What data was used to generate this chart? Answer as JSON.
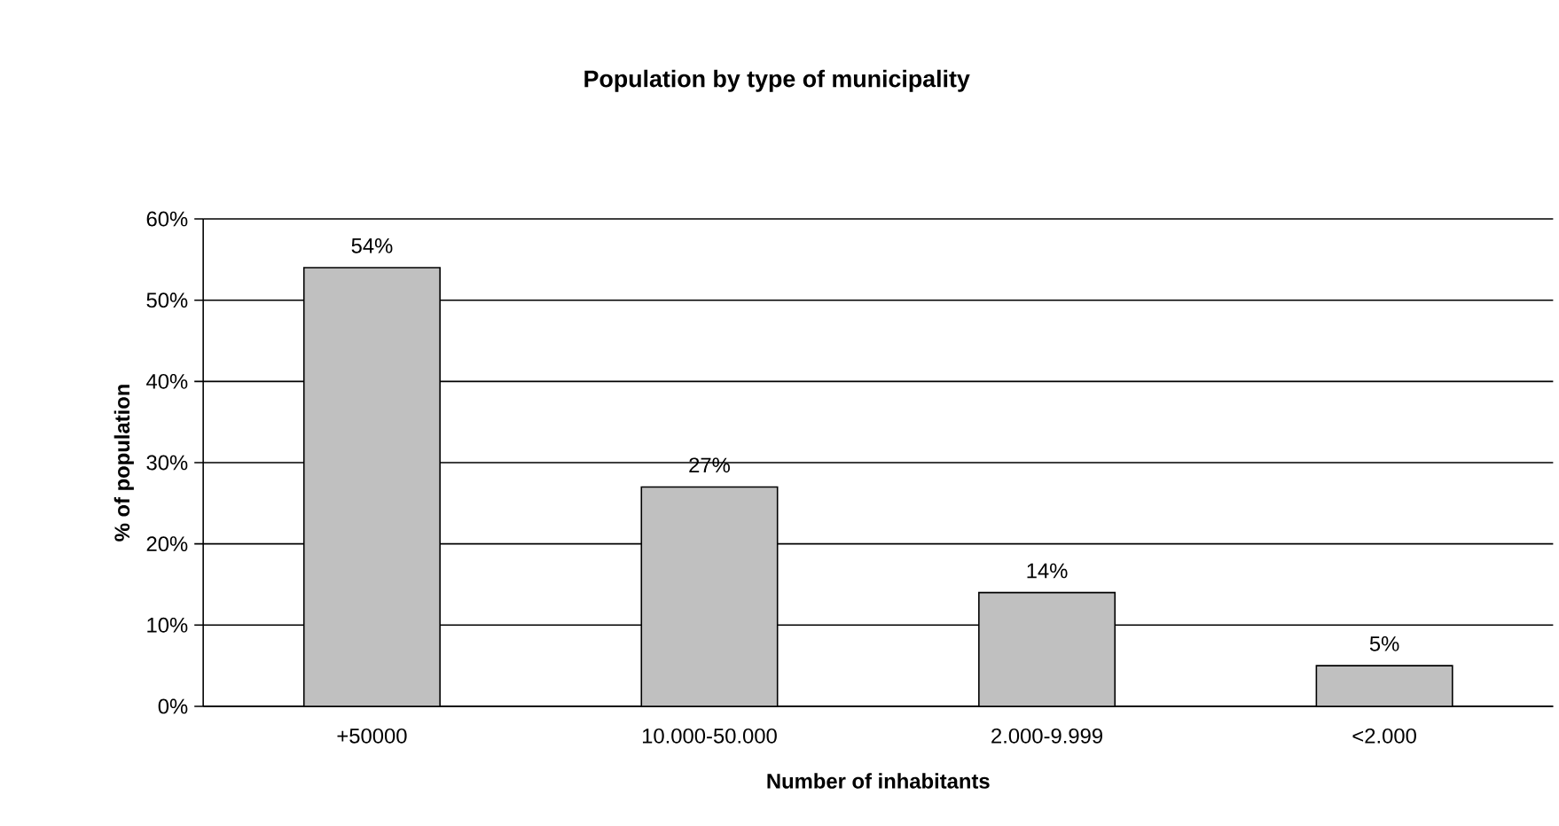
{
  "chart_data": {
    "type": "bar",
    "title": "Population by type of municipality",
    "xlabel": "Number of inhabitants",
    "ylabel": "% of population",
    "categories": [
      "+50000",
      "10.000-50.000",
      "2.000-9.999",
      "<2.000"
    ],
    "values": [
      54,
      27,
      14,
      5
    ],
    "value_labels": [
      "54%",
      "27%",
      "14%",
      "5%"
    ],
    "color": "#c0c0c0",
    "ylim": [
      0,
      60
    ],
    "yticks": [
      {
        "value": 0,
        "label": "0%"
      },
      {
        "value": 10,
        "label": "10%"
      },
      {
        "value": 20,
        "label": "20%"
      },
      {
        "value": 30,
        "label": "30%"
      },
      {
        "value": 40,
        "label": "40%"
      },
      {
        "value": 50,
        "label": "50%"
      },
      {
        "value": 60,
        "label": "60%"
      }
    ],
    "grid": "y"
  }
}
